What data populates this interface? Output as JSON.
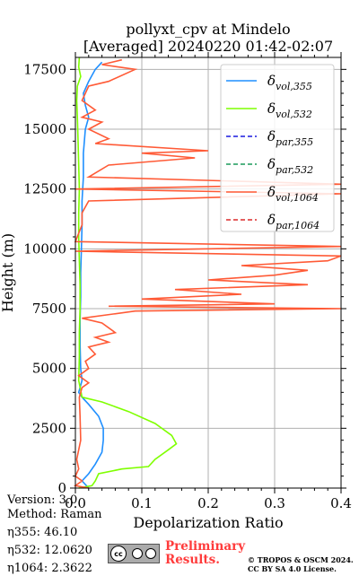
{
  "chart_data": {
    "type": "line",
    "title_line1": "pollyxt_cpv at Mindelo",
    "title_line2": "[Averaged] 20240220 01:42-02:07",
    "xlabel": "Depolarization Ratio",
    "ylabel": "Height (m)",
    "xlim": [
      0,
      0.4
    ],
    "ylim": [
      0,
      18000
    ],
    "x_ticks": [
      "0.0",
      "0.1",
      "0.2",
      "0.3",
      "0.4"
    ],
    "x_tick_values": [
      0,
      0.1,
      0.2,
      0.3,
      0.4
    ],
    "y_ticks": [
      "0",
      "2500",
      "5000",
      "7500",
      "10000",
      "12500",
      "15000",
      "17500"
    ],
    "y_tick_values": [
      0,
      2500,
      5000,
      7500,
      10000,
      12500,
      15000,
      17500
    ],
    "grid": true,
    "legend_position": "top-right",
    "series": [
      {
        "name": "δvol,355",
        "label_main": "δ",
        "label_sub": "vol,355",
        "color": "#1f8fff",
        "style": "solid",
        "points": [
          [
            0.02,
            0
          ],
          [
            0.01,
            300
          ],
          [
            0.02,
            600
          ],
          [
            0.03,
            1000
          ],
          [
            0.04,
            1500
          ],
          [
            0.042,
            2000
          ],
          [
            0.042,
            2500
          ],
          [
            0.035,
            3000
          ],
          [
            0.02,
            3500
          ],
          [
            0.01,
            3800
          ],
          [
            0.005,
            4000
          ],
          [
            0.01,
            4500
          ],
          [
            0.008,
            5000
          ],
          [
            0.007,
            6000
          ],
          [
            0.007,
            7000
          ],
          [
            0.008,
            8000
          ],
          [
            0.008,
            9000
          ],
          [
            0.009,
            10000
          ],
          [
            0.01,
            11000
          ],
          [
            0.01,
            12000
          ],
          [
            0.012,
            13000
          ],
          [
            0.012,
            14000
          ],
          [
            0.015,
            15000
          ],
          [
            0.02,
            15500
          ],
          [
            0.015,
            16000
          ],
          [
            0.012,
            16500
          ],
          [
            0.02,
            17000
          ],
          [
            0.03,
            17500
          ],
          [
            0.04,
            17800
          ]
        ]
      },
      {
        "name": "δvol,532",
        "label_main": "δ",
        "label_sub": "vol,532",
        "color": "#7fff00",
        "style": "solid",
        "points": [
          [
            0.005,
            0
          ],
          [
            0.025,
            100
          ],
          [
            0.03,
            300
          ],
          [
            0.035,
            600
          ],
          [
            0.07,
            800
          ],
          [
            0.11,
            900
          ],
          [
            0.12,
            1200
          ],
          [
            0.14,
            1600
          ],
          [
            0.152,
            1850
          ],
          [
            0.145,
            2200
          ],
          [
            0.12,
            2700
          ],
          [
            0.08,
            3200
          ],
          [
            0.04,
            3600
          ],
          [
            0.01,
            3800
          ],
          [
            0.005,
            4500
          ],
          [
            0.006,
            5500
          ],
          [
            0.006,
            6500
          ],
          [
            0.007,
            7500
          ],
          [
            0.007,
            8500
          ],
          [
            0.006,
            9500
          ],
          [
            0.005,
            10500
          ],
          [
            0.005,
            11500
          ],
          [
            0.006,
            12500
          ],
          [
            0.005,
            13500
          ],
          [
            0.004,
            14500
          ],
          [
            0.003,
            15500
          ],
          [
            0.002,
            16200
          ],
          [
            0.003,
            16800
          ],
          [
            0.008,
            17200
          ],
          [
            0.005,
            17600
          ],
          [
            0.006,
            18000
          ]
        ]
      },
      {
        "name": "δpar,355",
        "label_main": "δ",
        "label_sub": "par,355",
        "color": "#1a1adf",
        "style": "dashed",
        "points": []
      },
      {
        "name": "δpar,532",
        "label_main": "δ",
        "label_sub": "par,532",
        "color": "#1a9a5a",
        "style": "dashed",
        "points": []
      },
      {
        "name": "δvol,1064",
        "label_main": "δ",
        "label_sub": "vol,1064",
        "color": "#ff5a36",
        "style": "solid",
        "points": [
          [
            0.02,
            0
          ],
          [
            0.0,
            100
          ],
          [
            0.01,
            300
          ],
          [
            0.0,
            500
          ],
          [
            0.005,
            800
          ],
          [
            0.002,
            1200
          ],
          [
            0.008,
            2000
          ],
          [
            0.007,
            3000
          ],
          [
            0.006,
            3800
          ],
          [
            0.01,
            4200
          ],
          [
            0.02,
            4400
          ],
          [
            0.005,
            4700
          ],
          [
            0.02,
            5000
          ],
          [
            0.015,
            5300
          ],
          [
            0.03,
            5600
          ],
          [
            0.02,
            5900
          ],
          [
            0.05,
            6100
          ],
          [
            0.03,
            6300
          ],
          [
            0.06,
            6500
          ],
          [
            0.04,
            6900
          ],
          [
            0.01,
            7100
          ],
          [
            0.09,
            7400
          ],
          [
            0.4,
            7500
          ],
          [
            0.05,
            7600
          ],
          [
            0.3,
            7700
          ],
          [
            0.1,
            7900
          ],
          [
            0.25,
            8100
          ],
          [
            0.15,
            8300
          ],
          [
            0.35,
            8500
          ],
          [
            0.2,
            8700
          ],
          [
            0.3,
            8900
          ],
          [
            0.35,
            9100
          ],
          [
            0.25,
            9300
          ],
          [
            0.38,
            9500
          ],
          [
            0.4,
            9700
          ],
          [
            0.0,
            9900
          ],
          [
            0.4,
            10100
          ],
          [
            0.0,
            10300
          ],
          [
            0.01,
            11000
          ],
          [
            0.01,
            11500
          ],
          [
            0.02,
            12000
          ],
          [
            0.4,
            12300
          ],
          [
            0.0,
            12500
          ],
          [
            0.4,
            12700
          ],
          [
            0.02,
            13000
          ],
          [
            0.05,
            13500
          ],
          [
            0.18,
            13800
          ],
          [
            0.1,
            14000
          ],
          [
            0.2,
            14100
          ],
          [
            0.03,
            14400
          ],
          [
            0.05,
            14600
          ],
          [
            0.02,
            15000
          ],
          [
            0.04,
            15300
          ],
          [
            0.01,
            15500
          ],
          [
            0.03,
            15800
          ],
          [
            0.01,
            16200
          ],
          [
            0.02,
            16800
          ],
          [
            0.05,
            17000
          ],
          [
            0.09,
            17500
          ],
          [
            0.04,
            17700
          ],
          [
            0.07,
            17900
          ]
        ]
      },
      {
        "name": "δpar,1064",
        "label_main": "δ",
        "label_sub": "par,1064",
        "color": "#dc2a2a",
        "style": "dashed",
        "points": []
      }
    ]
  },
  "footer": {
    "version": "Version: 3.0",
    "method": "Method: Raman",
    "eta355": "η355:  46.10",
    "eta532": "η532: 12.0620",
    "eta1064": "η1064: 2.3622"
  },
  "badges": {
    "cc_label": "cc",
    "preliminary_line1": "Preliminary",
    "preliminary_line2": "Results.",
    "copyright_line1": "© TROPOS & OSCM 2024.",
    "copyright_line2": "CC BY SA 4.0 License."
  }
}
